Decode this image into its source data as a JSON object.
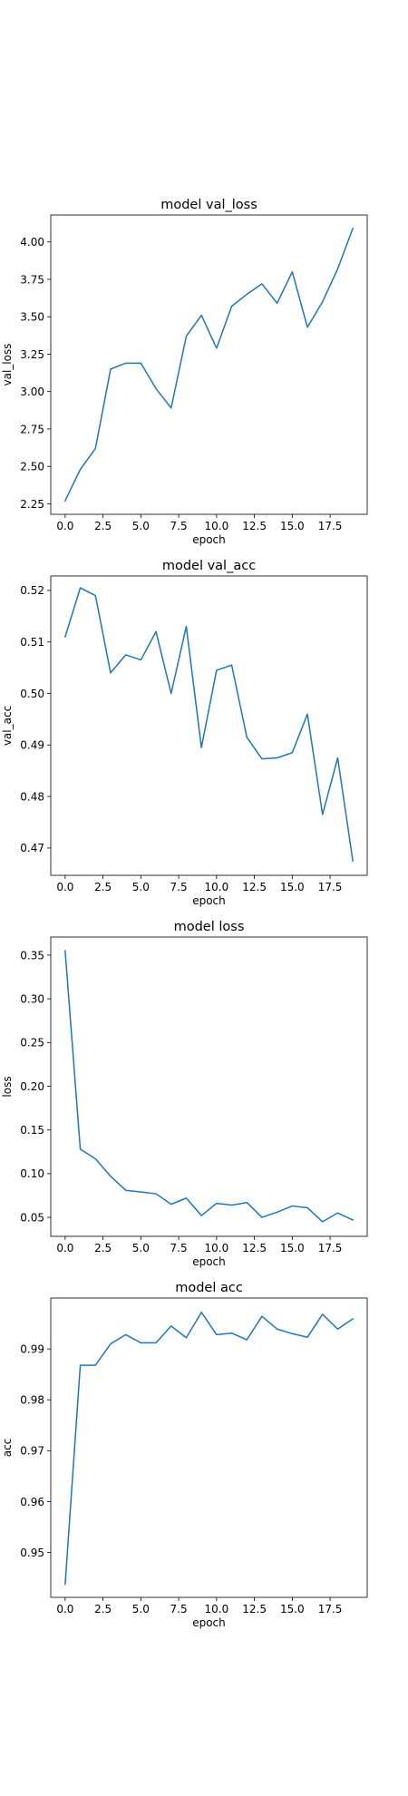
{
  "chart_data": [
    {
      "type": "line",
      "title": "model val_loss",
      "xlabel": "epoch",
      "ylabel": "val_loss",
      "xlim": [
        -0.95,
        19.95
      ],
      "ylim": [
        2.18,
        4.18
      ],
      "xticks": [
        0,
        2.5,
        5,
        7.5,
        10,
        12.5,
        15,
        17.5
      ],
      "xtick_labels": [
        "0.0",
        "2.5",
        "5.0",
        "7.5",
        "10.0",
        "12.5",
        "15.0",
        "17.5"
      ],
      "yticks": [
        2.25,
        2.5,
        2.75,
        3.0,
        3.25,
        3.5,
        3.75,
        4.0
      ],
      "ytick_labels": [
        "2.25",
        "2.50",
        "2.75",
        "3.00",
        "3.25",
        "3.50",
        "3.75",
        "4.00"
      ],
      "grid": false,
      "color": "#1f77b4",
      "x": [
        0,
        1,
        2,
        3,
        4,
        5,
        6,
        7,
        8,
        9,
        10,
        11,
        12,
        13,
        14,
        15,
        16,
        17,
        18,
        19
      ],
      "y": [
        2.27,
        2.48,
        2.62,
        3.15,
        3.19,
        3.19,
        3.02,
        2.89,
        3.37,
        3.51,
        3.29,
        3.57,
        3.65,
        3.72,
        3.59,
        3.8,
        3.43,
        3.6,
        3.82,
        4.09
      ]
    },
    {
      "type": "line",
      "title": "model val_acc",
      "xlabel": "epoch",
      "ylabel": "val_acc",
      "xlim": [
        -0.95,
        19.95
      ],
      "ylim": [
        0.4647,
        0.5228
      ],
      "xticks": [
        0,
        2.5,
        5,
        7.5,
        10,
        12.5,
        15,
        17.5
      ],
      "xtick_labels": [
        "0.0",
        "2.5",
        "5.0",
        "7.5",
        "10.0",
        "12.5",
        "15.0",
        "17.5"
      ],
      "yticks": [
        0.47,
        0.48,
        0.49,
        0.5,
        0.51,
        0.52
      ],
      "ytick_labels": [
        "0.47",
        "0.48",
        "0.49",
        "0.50",
        "0.51",
        "0.52"
      ],
      "grid": false,
      "color": "#1f77b4",
      "x": [
        0,
        1,
        2,
        3,
        4,
        5,
        6,
        7,
        8,
        9,
        10,
        11,
        12,
        13,
        14,
        15,
        16,
        17,
        18,
        19
      ],
      "y": [
        0.511,
        0.5205,
        0.519,
        0.504,
        0.5075,
        0.5065,
        0.512,
        0.5,
        0.513,
        0.4895,
        0.5045,
        0.5055,
        0.4915,
        0.4873,
        0.4875,
        0.4885,
        0.496,
        0.4765,
        0.4875,
        0.4675
      ]
    },
    {
      "type": "line",
      "title": "model loss",
      "xlabel": "epoch",
      "ylabel": "loss",
      "xlim": [
        -0.95,
        19.95
      ],
      "ylim": [
        0.0283,
        0.3707
      ],
      "xticks": [
        0,
        2.5,
        5,
        7.5,
        10,
        12.5,
        15,
        17.5
      ],
      "xtick_labels": [
        "0.0",
        "2.5",
        "5.0",
        "7.5",
        "10.0",
        "12.5",
        "15.0",
        "17.5"
      ],
      "yticks": [
        0.05,
        0.1,
        0.15,
        0.2,
        0.25,
        0.3,
        0.35
      ],
      "ytick_labels": [
        "0.05",
        "0.10",
        "0.15",
        "0.20",
        "0.25",
        "0.30",
        "0.35"
      ],
      "grid": false,
      "color": "#1f77b4",
      "x": [
        0,
        1,
        2,
        3,
        4,
        5,
        6,
        7,
        8,
        9,
        10,
        11,
        12,
        13,
        14,
        15,
        16,
        17,
        18,
        19
      ],
      "y": [
        0.355,
        0.128,
        0.117,
        0.097,
        0.081,
        0.079,
        0.077,
        0.065,
        0.072,
        0.052,
        0.066,
        0.064,
        0.067,
        0.05,
        0.056,
        0.063,
        0.061,
        0.045,
        0.055,
        0.047
      ]
    },
    {
      "type": "line",
      "title": "model acc",
      "xlabel": "epoch",
      "ylabel": "acc",
      "xlim": [
        -0.95,
        19.95
      ],
      "ylim": [
        0.9412,
        1.0
      ],
      "xticks": [
        0,
        2.5,
        5,
        7.5,
        10,
        12.5,
        15,
        17.5
      ],
      "xtick_labels": [
        "0.0",
        "2.5",
        "5.0",
        "7.5",
        "10.0",
        "12.5",
        "15.0",
        "17.5"
      ],
      "yticks": [
        0.95,
        0.96,
        0.97,
        0.98,
        0.99
      ],
      "ytick_labels": [
        "0.95",
        "0.96",
        "0.97",
        "0.98",
        "0.99"
      ],
      "grid": false,
      "color": "#1f77b4",
      "x": [
        0,
        1,
        2,
        3,
        4,
        5,
        6,
        7,
        8,
        9,
        10,
        11,
        12,
        13,
        14,
        15,
        16,
        17,
        18,
        19
      ],
      "y": [
        0.9438,
        0.9868,
        0.9868,
        0.991,
        0.9928,
        0.9912,
        0.9912,
        0.9945,
        0.9922,
        0.9972,
        0.9928,
        0.9931,
        0.9918,
        0.9964,
        0.9939,
        0.993,
        0.9923,
        0.9968,
        0.9939,
        0.9959
      ]
    }
  ]
}
